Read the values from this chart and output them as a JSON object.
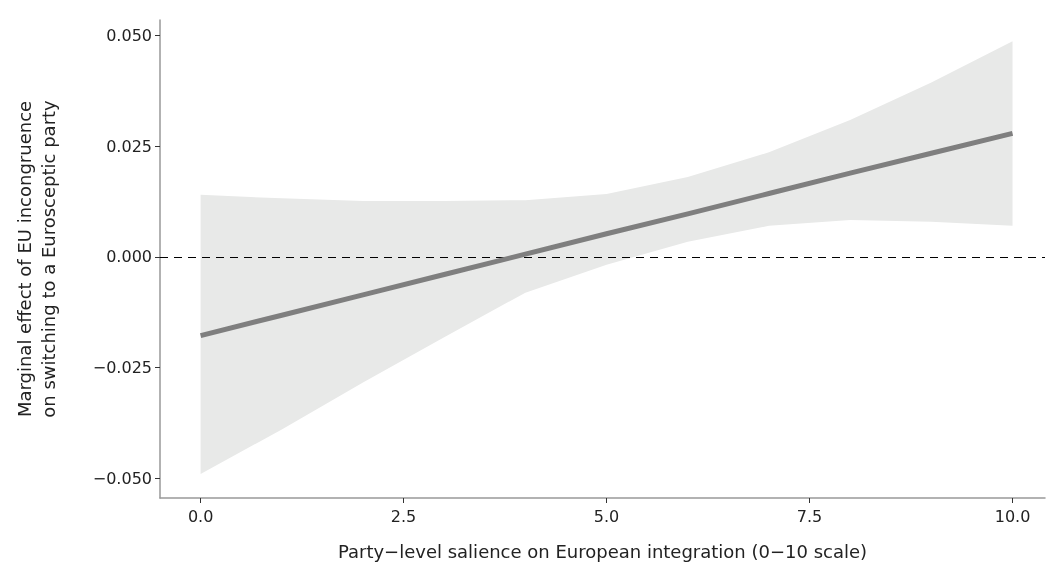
{
  "chart_data": {
    "type": "line",
    "xlabel": "Party−level salience on European integration (0−10 scale)",
    "ylabel": "Marginal effect of EU incongruence\non switching to a Eurosceptic party",
    "xlim": [
      -0.5,
      10.4
    ],
    "ylim": [
      -0.0545,
      0.0535
    ],
    "xticks": [
      {
        "value": 0,
        "label": "0.0"
      },
      {
        "value": 2.5,
        "label": "2.5"
      },
      {
        "value": 5,
        "label": "5.0"
      },
      {
        "value": 7.5,
        "label": "7.5"
      },
      {
        "value": 10,
        "label": "10.0"
      }
    ],
    "yticks": [
      {
        "value": -0.05,
        "label": "−0.050"
      },
      {
        "value": -0.025,
        "label": "−0.025"
      },
      {
        "value": 0,
        "label": "0.000"
      },
      {
        "value": 0.025,
        "label": "0.025"
      },
      {
        "value": 0.05,
        "label": "0.050"
      }
    ],
    "marker": "none",
    "line_style": "solid",
    "ref_lines": [
      {
        "axis": "y",
        "value": 0,
        "color": "#000000",
        "line_style": "dashed"
      }
    ],
    "series": [
      {
        "color": "#7f7f7f",
        "x": [
          0,
          1,
          2,
          3,
          4,
          5,
          6,
          7,
          8,
          9,
          10
        ],
        "values": [
          -0.0178,
          -0.0132,
          -0.0086,
          -0.004,
          0.0006,
          0.0052,
          0.0097,
          0.0143,
          0.0189,
          0.0234,
          0.0279
        ],
        "lower": [
          -0.0491,
          -0.039,
          -0.0284,
          -0.0182,
          -0.0081,
          -0.0018,
          0.0034,
          0.007,
          0.0083,
          0.0079,
          0.007
        ],
        "upper": [
          0.014,
          0.0132,
          0.0126,
          0.0126,
          0.0128,
          0.0142,
          0.018,
          0.0236,
          0.0309,
          0.0394,
          0.0487
        ]
      }
    ]
  }
}
